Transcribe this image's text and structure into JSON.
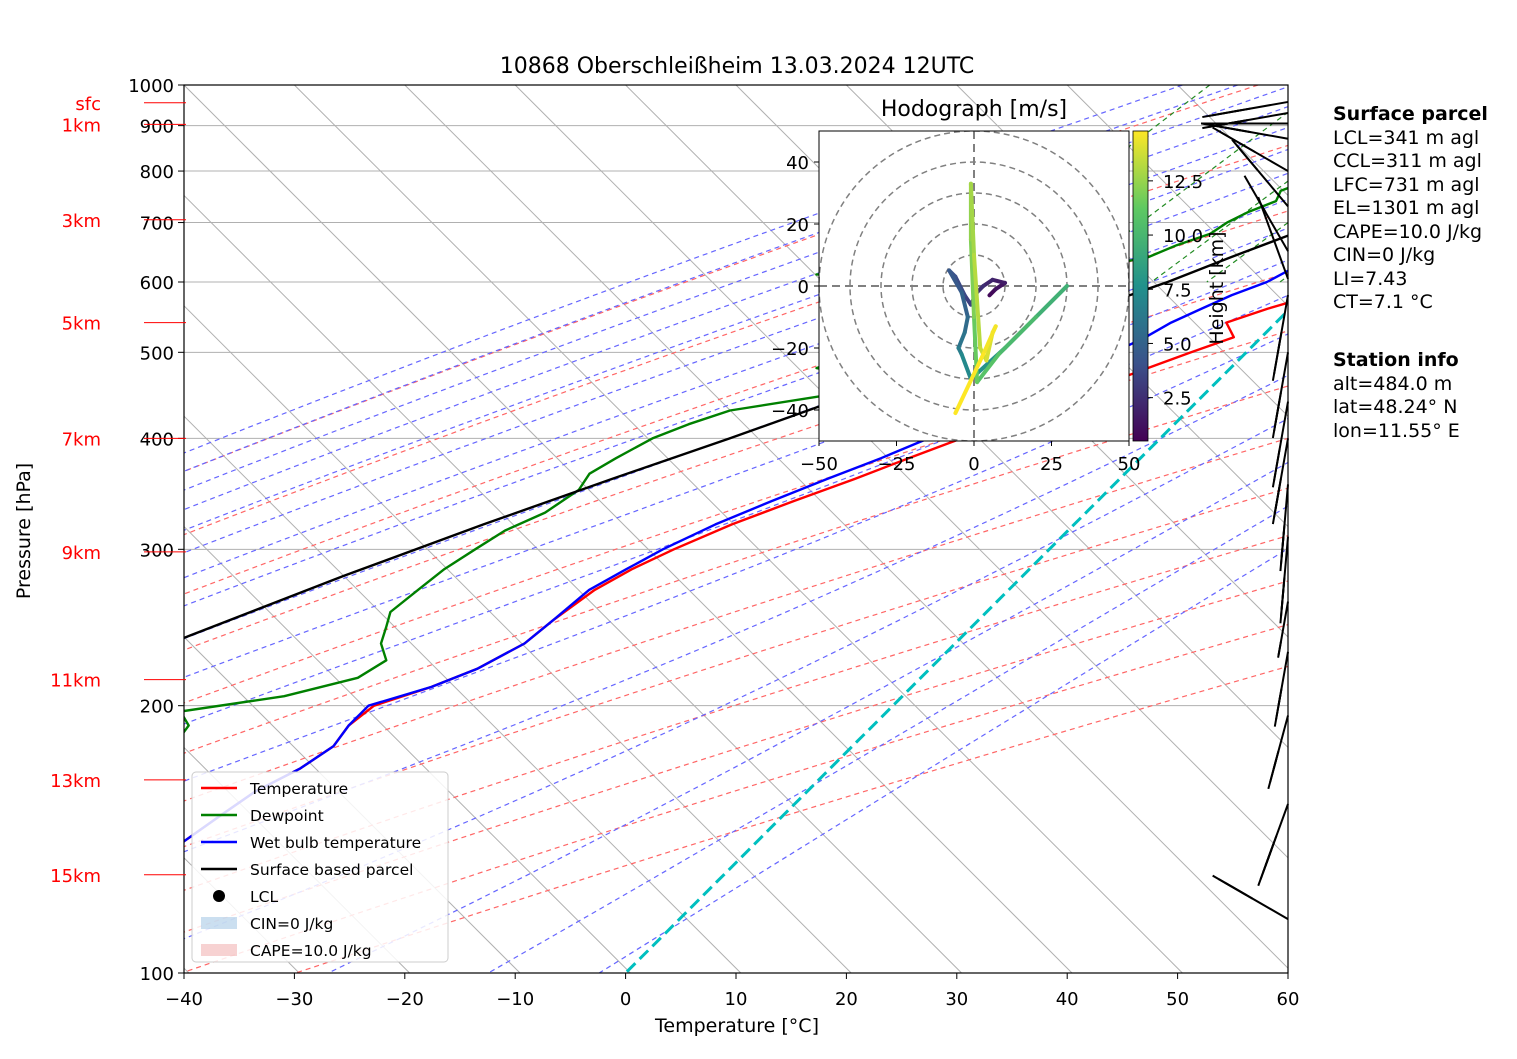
{
  "chart_data": {
    "type": "line",
    "title": "10868 Oberschleißheim 13.03.2024 12UTC",
    "xlabel": "Temperature [°C]",
    "ylabel": "Pressure [hPa]",
    "xlim": [
      -40,
      60
    ],
    "ylim": [
      1000,
      100
    ],
    "y_scale": "log",
    "skew": true,
    "x_ticks": [
      "−40",
      "−30",
      "−20",
      "−10",
      "0",
      "10",
      "20",
      "30",
      "40",
      "50",
      "60"
    ],
    "y_ticks": [
      "100",
      "200",
      "300",
      "400",
      "500",
      "600",
      "700",
      "800",
      "900",
      "1000"
    ],
    "height_labels": [
      {
        "text": "15km",
        "p": 129
      },
      {
        "text": "13km",
        "p": 165
      },
      {
        "text": "11km",
        "p": 214
      },
      {
        "text": "9km",
        "p": 298
      },
      {
        "text": "7km",
        "p": 400
      },
      {
        "text": "5km",
        "p": 540
      },
      {
        "text": "3km",
        "p": 705
      },
      {
        "text": "1km",
        "p": 903
      },
      {
        "text": "sfc",
        "p": 955
      }
    ],
    "series": [
      {
        "name": "Temperature",
        "color": "#ff0000",
        "points": [
          [
            8.5,
            957
          ],
          [
            7.5,
            940
          ],
          [
            6.5,
            910
          ],
          [
            6.0,
            880
          ],
          [
            5.5,
            850
          ],
          [
            5.0,
            820
          ],
          [
            4.5,
            795
          ],
          [
            5.0,
            770
          ],
          [
            4.5,
            745
          ],
          [
            3.5,
            720
          ],
          [
            3.0,
            700
          ],
          [
            3.0,
            680
          ],
          [
            2.5,
            660
          ],
          [
            2.0,
            640
          ],
          [
            2.0,
            620
          ],
          [
            3.0,
            605
          ],
          [
            1.0,
            580
          ],
          [
            -2.0,
            560
          ],
          [
            -4.5,
            540
          ],
          [
            -2.5,
            520
          ],
          [
            -5.0,
            500
          ],
          [
            -7.5,
            480
          ],
          [
            -10.0,
            460
          ],
          [
            -13.0,
            440
          ],
          [
            -15.0,
            420
          ],
          [
            -18.0,
            400
          ],
          [
            -21.0,
            380
          ],
          [
            -24.0,
            360
          ],
          [
            -27.5,
            340
          ],
          [
            -31.0,
            320
          ],
          [
            -34.0,
            300
          ],
          [
            -36.0,
            285
          ],
          [
            -37.5,
            270
          ],
          [
            -38.5,
            250
          ],
          [
            -39.0,
            235
          ],
          [
            -41.0,
            220
          ],
          [
            -43.5,
            210
          ],
          [
            -47.0,
            200
          ],
          [
            -47.5,
            190
          ],
          [
            -47.0,
            180
          ],
          [
            -48.0,
            170
          ],
          [
            -50.0,
            160
          ],
          [
            -51.0,
            150
          ],
          [
            -52.0,
            140
          ],
          [
            -53.0,
            135
          ],
          [
            -54.0,
            128
          ]
        ]
      },
      {
        "name": "Dewpoint",
        "color": "#008000",
        "points": [
          [
            5.0,
            957
          ],
          [
            5.0,
            940
          ],
          [
            4.5,
            920
          ],
          [
            3.0,
            900
          ],
          [
            1.5,
            880
          ],
          [
            -1.0,
            860
          ],
          [
            -3.5,
            840
          ],
          [
            -6.0,
            820
          ],
          [
            -8.0,
            800
          ],
          [
            -10.0,
            780
          ],
          [
            -11.5,
            760
          ],
          [
            -11.0,
            740
          ],
          [
            -12.5,
            720
          ],
          [
            -13.5,
            700
          ],
          [
            -14.0,
            680
          ],
          [
            -16.0,
            660
          ],
          [
            -17.5,
            640
          ],
          [
            -21.0,
            625
          ],
          [
            -31.0,
            618
          ],
          [
            -46.0,
            612
          ],
          [
            -28.0,
            600
          ],
          [
            -27.5,
            580
          ],
          [
            -31.0,
            560
          ],
          [
            -33.5,
            540
          ],
          [
            -37.0,
            520
          ],
          [
            -35.0,
            500
          ],
          [
            -37.5,
            480
          ],
          [
            -31.0,
            465
          ],
          [
            -33.0,
            450
          ],
          [
            -41.5,
            430
          ],
          [
            -44.0,
            415
          ],
          [
            -46.0,
            400
          ],
          [
            -47.5,
            380
          ],
          [
            -48.5,
            365
          ],
          [
            -48.0,
            350
          ],
          [
            -49.0,
            330
          ],
          [
            -51.0,
            315
          ],
          [
            -52.0,
            300
          ],
          [
            -53.0,
            285
          ],
          [
            -53.5,
            270
          ],
          [
            -54.0,
            255
          ],
          [
            -53.0,
            245
          ],
          [
            -52.0,
            235
          ],
          [
            -50.0,
            225
          ],
          [
            -51.0,
            215
          ],
          [
            -56.0,
            205
          ],
          [
            -64.0,
            197
          ],
          [
            -62.0,
            190
          ],
          [
            -61.5,
            180
          ],
          [
            -63.0,
            170
          ],
          [
            -64.0,
            160
          ],
          [
            -64.5,
            150
          ],
          [
            -66.0,
            140
          ],
          [
            -67.0,
            135
          ],
          [
            -68.0,
            130
          ]
        ]
      },
      {
        "name": "Wet bulb temperature",
        "color": "#0000ff",
        "points": [
          [
            7.0,
            957
          ],
          [
            6.0,
            930
          ],
          [
            5.5,
            900
          ],
          [
            5.0,
            870
          ],
          [
            4.5,
            840
          ],
          [
            4.0,
            810
          ],
          [
            3.5,
            780
          ],
          [
            2.5,
            750
          ],
          [
            1.5,
            720
          ],
          [
            0.5,
            700
          ],
          [
            -0.5,
            680
          ],
          [
            -1.5,
            660
          ],
          [
            -2.5,
            640
          ],
          [
            -3.5,
            620
          ],
          [
            -4.5,
            600
          ],
          [
            -6.5,
            580
          ],
          [
            -8.0,
            560
          ],
          [
            -9.5,
            540
          ],
          [
            -10.5,
            520
          ],
          [
            -12.0,
            500
          ],
          [
            -13.5,
            480
          ],
          [
            -15.0,
            460
          ],
          [
            -17.0,
            440
          ],
          [
            -19.0,
            420
          ],
          [
            -21.0,
            400
          ],
          [
            -23.5,
            380
          ],
          [
            -26.5,
            360
          ],
          [
            -29.5,
            340
          ],
          [
            -32.5,
            320
          ],
          [
            -35.0,
            300
          ],
          [
            -36.5,
            285
          ],
          [
            -38.0,
            270
          ],
          [
            -38.5,
            250
          ],
          [
            -39.0,
            235
          ],
          [
            -41.0,
            220
          ],
          [
            -43.5,
            210
          ],
          [
            -47.5,
            200
          ],
          [
            -47.5,
            190
          ],
          [
            -47.0,
            180
          ],
          [
            -48.0,
            170
          ],
          [
            -50.0,
            160
          ],
          [
            -51.0,
            150
          ],
          [
            -52.0,
            140
          ],
          [
            -53.0,
            135
          ],
          [
            -54.5,
            128
          ]
        ]
      },
      {
        "name": "Surface based parcel",
        "color": "#000000",
        "points": [
          [
            8.5,
            957
          ],
          [
            6.5,
            920
          ],
          [
            5.0,
            880
          ],
          [
            3.5,
            840
          ],
          [
            1.5,
            800
          ],
          [
            -1.0,
            760
          ],
          [
            -3.5,
            720
          ],
          [
            -6.5,
            680
          ],
          [
            -10.0,
            640
          ],
          [
            -13.5,
            600
          ],
          [
            -18.0,
            560
          ],
          [
            -22.5,
            520
          ],
          [
            -27.5,
            480
          ],
          [
            -33.0,
            440
          ],
          [
            -39.0,
            400
          ],
          [
            -46.0,
            360
          ],
          [
            -53.5,
            320
          ],
          [
            -61.5,
            280
          ],
          [
            -70.0,
            240
          ],
          [
            -80.0,
            200
          ],
          [
            -89.0,
            170
          ]
        ]
      },
      {
        "name": "",
        "color": "#00bfbf",
        "dashed": true,
        "points": [
          [
            0,
            1000
          ],
          [
            0,
            100
          ]
        ]
      }
    ],
    "lcl": {
      "t": 6.5,
      "p": 922
    },
    "legend": {
      "placement": "lower-left",
      "entries": [
        {
          "label": "Temperature",
          "kind": "line",
          "color": "#ff0000"
        },
        {
          "label": "Dewpoint",
          "kind": "line",
          "color": "#008000"
        },
        {
          "label": "Wet bulb temperature",
          "kind": "line",
          "color": "#0000ff"
        },
        {
          "label": "Surface based parcel",
          "kind": "line",
          "color": "#000000"
        },
        {
          "label": "LCL",
          "kind": "dot",
          "color": "#000000"
        },
        {
          "label": "CIN=0 J/kg",
          "kind": "patch",
          "color": "#a9c9e6"
        },
        {
          "label": "CAPE=10.0 J/kg",
          "kind": "patch",
          "color": "#f2b4b4"
        }
      ]
    },
    "wind_barbs": [
      {
        "p": 957,
        "speed_kt": 25,
        "dir": 260
      },
      {
        "p": 930,
        "speed_kt": 30,
        "dir": 260
      },
      {
        "p": 905,
        "speed_kt": 30,
        "dir": 270
      },
      {
        "p": 870,
        "speed_kt": 25,
        "dir": 280
      },
      {
        "p": 800,
        "speed_kt": 25,
        "dir": 300
      },
      {
        "p": 730,
        "speed_kt": 20,
        "dir": 320
      },
      {
        "p": 650,
        "speed_kt": 15,
        "dir": 330
      },
      {
        "p": 605,
        "speed_kt": 10,
        "dir": 340
      },
      {
        "p": 580,
        "speed_kt": 25,
        "dir": 190
      },
      {
        "p": 500,
        "speed_kt": 30,
        "dir": 190
      },
      {
        "p": 440,
        "speed_kt": 20,
        "dir": 190
      },
      {
        "p": 400,
        "speed_kt": 30,
        "dir": 190
      },
      {
        "p": 355,
        "speed_kt": 30,
        "dir": 185
      },
      {
        "p": 310,
        "speed_kt": 30,
        "dir": 185
      },
      {
        "p": 262,
        "speed_kt": 55,
        "dir": 190
      },
      {
        "p": 230,
        "speed_kt": 70,
        "dir": 190
      },
      {
        "p": 195,
        "speed_kt": 70,
        "dir": 195
      },
      {
        "p": 155,
        "speed_kt": 40,
        "dir": 200
      },
      {
        "p": 115,
        "speed_kt": 30,
        "dir": 300
      }
    ],
    "hodograph": {
      "title": "Hodograph [m/s]",
      "xlim": [
        -50,
        50
      ],
      "ylim": [
        -50,
        50
      ],
      "x_ticks": [
        "−50",
        "−25",
        "0",
        "25",
        "50"
      ],
      "y_ticks": [
        "40",
        "20",
        "0",
        "−20",
        "−40"
      ],
      "rings": [
        10,
        20,
        30,
        40,
        50
      ],
      "colorbar": {
        "label": "Height [km]",
        "ticks": [
          "2.5",
          "5.0",
          "7.5",
          "10.0",
          "12.5"
        ],
        "range": [
          0.5,
          14.8
        ]
      },
      "points": [
        {
          "u": 5,
          "v": -3,
          "h": 0.5
        },
        {
          "u": 7,
          "v": -1,
          "h": 0.9
        },
        {
          "u": 10,
          "v": 1,
          "h": 1.3
        },
        {
          "u": 6,
          "v": 2,
          "h": 1.7
        },
        {
          "u": 3,
          "v": 0,
          "h": 2.1
        },
        {
          "u": 1,
          "v": -2,
          "h": 2.5
        },
        {
          "u": -1,
          "v": -6,
          "h": 2.9
        },
        {
          "u": -3,
          "v": -3,
          "h": 3.3
        },
        {
          "u": -6,
          "v": 3,
          "h": 3.7
        },
        {
          "u": -8,
          "v": 5,
          "h": 4.1
        },
        {
          "u": -4,
          "v": -2,
          "h": 4.5
        },
        {
          "u": -2,
          "v": -10,
          "h": 5.0
        },
        {
          "u": -3,
          "v": -15,
          "h": 5.5
        },
        {
          "u": -5,
          "v": -20,
          "h": 6.0
        },
        {
          "u": -4,
          "v": -22,
          "h": 6.5
        },
        {
          "u": -1,
          "v": -30,
          "h": 7.2
        },
        {
          "u": 10,
          "v": -20,
          "h": 7.8
        },
        {
          "u": 20,
          "v": -10,
          "h": 8.4
        },
        {
          "u": 30,
          "v": 0,
          "h": 9.0
        },
        {
          "u": 20,
          "v": -10,
          "h": 9.6
        },
        {
          "u": 8,
          "v": -22,
          "h": 10.2
        },
        {
          "u": 1,
          "v": -31,
          "h": 10.8
        },
        {
          "u": 0,
          "v": -10,
          "h": 11.4
        },
        {
          "u": -1,
          "v": 15,
          "h": 12.0
        },
        {
          "u": -1,
          "v": 33,
          "h": 12.4
        },
        {
          "u": 0,
          "v": 10,
          "h": 12.8
        },
        {
          "u": 2,
          "v": -20,
          "h": 13.2
        },
        {
          "u": 4,
          "v": -24,
          "h": 13.6
        },
        {
          "u": 6,
          "v": -15,
          "h": 14.0
        },
        {
          "u": 7,
          "v": -13,
          "h": 14.3
        },
        {
          "u": 3,
          "v": -22,
          "h": 14.6
        },
        {
          "u": -6,
          "v": -41,
          "h": 14.8
        }
      ]
    }
  },
  "surface_parcel": {
    "heading": "Surface parcel",
    "lines": [
      "LCL=341 m agl",
      "CCL=311 m agl",
      "LFC=731 m agl",
      "EL=1301 m agl",
      "CAPE=10.0 J/kg",
      "CIN=0 J/kg",
      "LI=7.43",
      "CT=7.1 °C"
    ]
  },
  "station_info": {
    "heading": "Station info",
    "lines": [
      "alt=484.0 m",
      "lat=48.24° N",
      "lon=11.55° E"
    ]
  }
}
